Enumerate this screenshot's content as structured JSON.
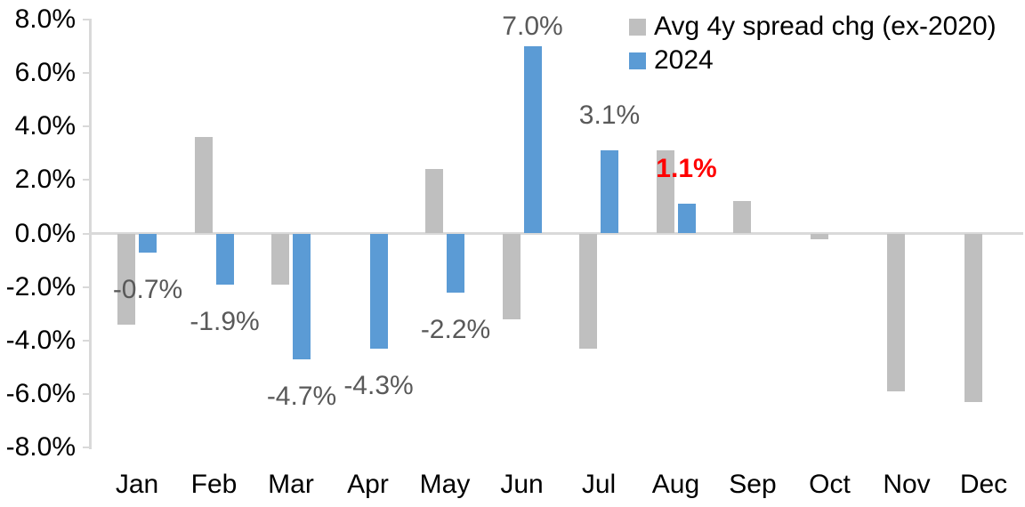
{
  "colors": {
    "background": "#FFFFFF",
    "axis_line": "#D9D9D9",
    "axis_text": "#000000",
    "series_avg": "#BFBFBF",
    "series_2024": "#5B9BD5",
    "data_label": "#595959",
    "highlight_label": "#FF0000"
  },
  "legend": {
    "position": "top-right",
    "items": [
      {
        "label": "Avg 4y spread chg (ex-2020)",
        "color": "#BFBFBF"
      },
      {
        "label": "2024",
        "color": "#5B9BD5"
      }
    ]
  },
  "chart_data": {
    "type": "bar",
    "title": "",
    "xlabel": "",
    "ylabel": "",
    "grid": false,
    "legend_position": "top-right",
    "categories": [
      "Jan",
      "Feb",
      "Mar",
      "Apr",
      "May",
      "Jun",
      "Jul",
      "Aug",
      "Sep",
      "Oct",
      "Nov",
      "Dec"
    ],
    "y_axis": {
      "unit": "%",
      "ylim": [
        -8,
        8
      ],
      "tick_values": [
        8,
        6,
        4,
        2,
        0,
        -2,
        -4,
        -6,
        -8
      ],
      "tick_labels": [
        "8.0%",
        "6.0%",
        "4.0%",
        "2.0%",
        "0.0%",
        "-2.0%",
        "-4.0%",
        "-6.0%",
        "-8.0%"
      ]
    },
    "series": [
      {
        "name": "Avg 4y spread chg (ex-2020)",
        "color": "#BFBFBF",
        "values": [
          -3.4,
          3.6,
          -1.9,
          0,
          2.4,
          -3.2,
          -4.3,
          3.1,
          1.2,
          -0.2,
          -5.9,
          -6.3
        ]
      },
      {
        "name": "2024",
        "color": "#5B9BD5",
        "values": [
          -0.7,
          -1.9,
          -4.7,
          -4.3,
          -2.2,
          7.0,
          3.1,
          1.1,
          null,
          null,
          null,
          null
        ],
        "data_labels": [
          {
            "text": "-0.7%",
            "color": "#595959",
            "bold": false
          },
          {
            "text": "-1.9%",
            "color": "#595959",
            "bold": false
          },
          {
            "text": "-4.7%",
            "color": "#595959",
            "bold": false
          },
          {
            "text": "-4.3%",
            "color": "#595959",
            "bold": false
          },
          {
            "text": "-2.2%",
            "color": "#595959",
            "bold": false
          },
          {
            "text": "7.0%",
            "color": "#595959",
            "bold": false
          },
          {
            "text": "3.1%",
            "color": "#595959",
            "bold": false
          },
          {
            "text": "1.1%",
            "color": "#FF0000",
            "bold": true
          },
          null,
          null,
          null,
          null
        ]
      }
    ]
  }
}
